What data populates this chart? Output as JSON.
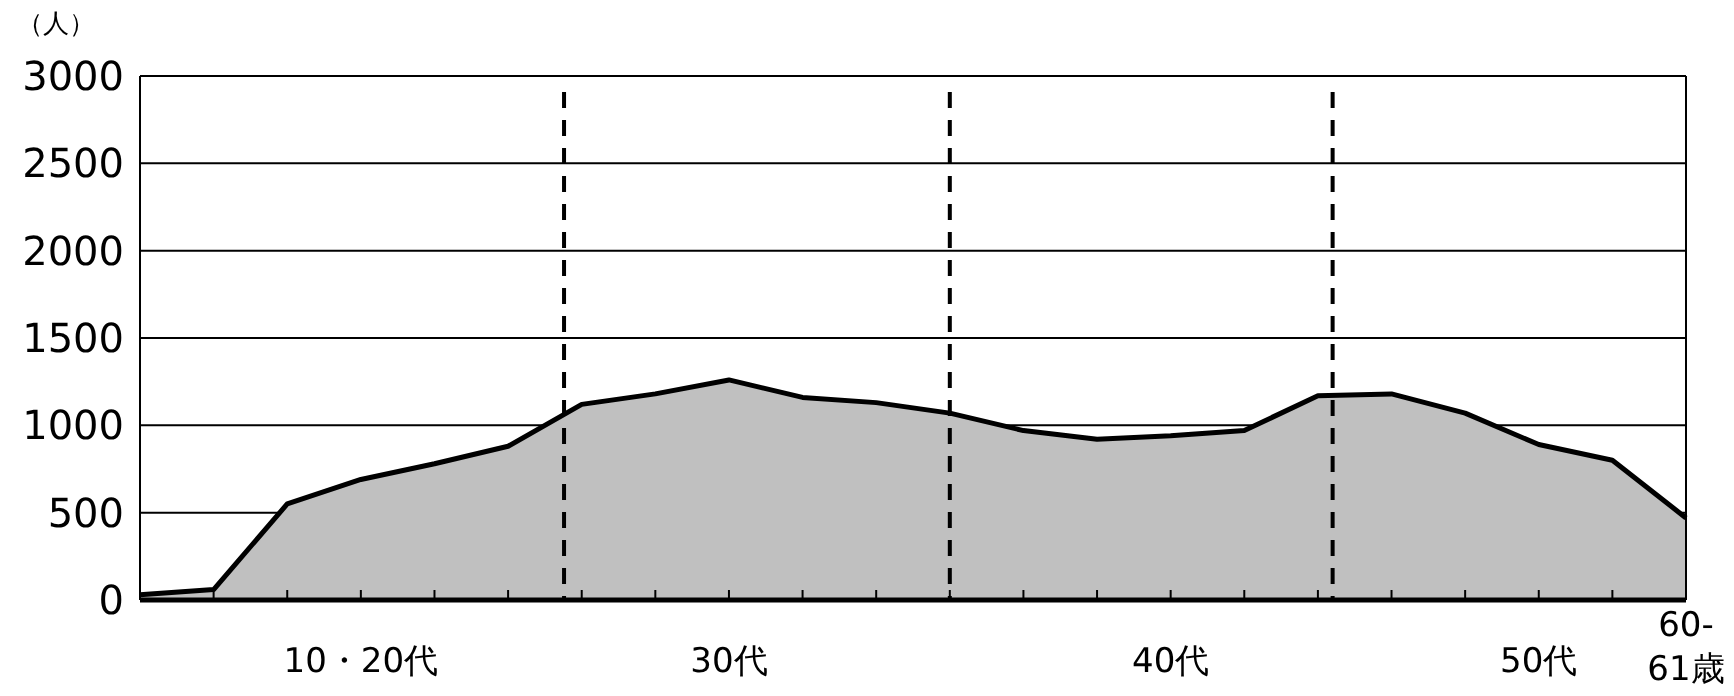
{
  "chart_data": {
    "type": "area",
    "ylabel": "（人）",
    "categories": [
      null,
      null,
      null,
      "10・20代",
      null,
      null,
      null,
      null,
      "30代",
      null,
      null,
      null,
      null,
      null,
      "40代",
      null,
      null,
      null,
      null,
      "50代",
      null,
      "60-\n61歳"
    ],
    "series": [
      {
        "color": "#c0c0c0",
        "values": [
          30,
          60,
          550,
          690,
          780,
          880,
          1120,
          1180,
          1260,
          1160,
          1130,
          1070,
          970,
          920,
          940,
          970,
          1170,
          1180,
          1070,
          890,
          800,
          470
        ]
      }
    ],
    "ylim": [
      0,
      3000
    ],
    "yticks": [
      0,
      500,
      1000,
      1500,
      2000,
      2500,
      3000
    ],
    "grid": "y"
  }
}
